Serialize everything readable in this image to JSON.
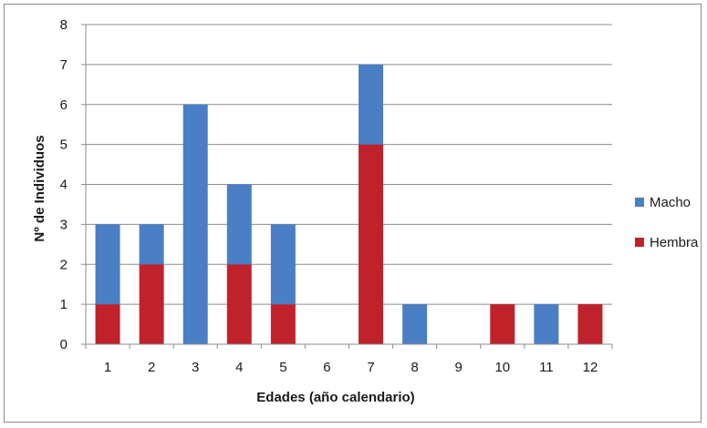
{
  "chart_data": {
    "type": "bar",
    "stacked": true,
    "title": "",
    "xlabel": "Edades (año calendario)",
    "ylabel": "Nº de Individuos",
    "categories": [
      "1",
      "2",
      "3",
      "4",
      "5",
      "6",
      "7",
      "8",
      "9",
      "10",
      "11",
      "12"
    ],
    "series": [
      {
        "name": "Hembra",
        "color": "#c0222b",
        "values": [
          1,
          2,
          0,
          2,
          1,
          0,
          5,
          0,
          0,
          1,
          0,
          1
        ]
      },
      {
        "name": "Macho",
        "color": "#4a7fc5",
        "values": [
          2,
          1,
          6,
          2,
          2,
          0,
          2,
          1,
          0,
          0,
          1,
          0
        ]
      }
    ],
    "ylim": [
      0,
      8
    ],
    "yticks": [
      0,
      1,
      2,
      3,
      4,
      5,
      6,
      7,
      8
    ],
    "grid": true,
    "legend": {
      "position": "right",
      "entries": [
        "Macho",
        "Hembra"
      ]
    }
  }
}
